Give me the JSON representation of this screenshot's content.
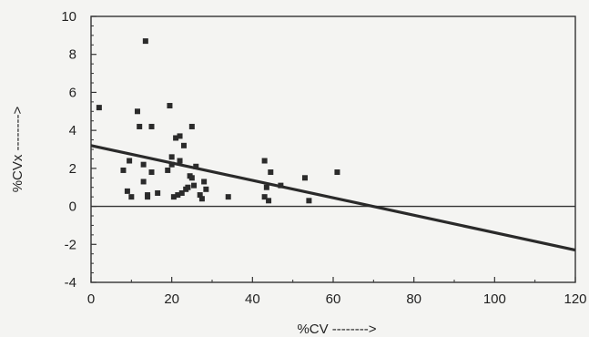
{
  "chart_data": {
    "type": "scatter",
    "xlabel": "%CV -------->",
    "ylabel": "%CVx -------->",
    "xlim": [
      0,
      120
    ],
    "ylim": [
      -4,
      10
    ],
    "x_ticks": [
      "0",
      "20",
      "40",
      "60",
      "80",
      "100",
      "120"
    ],
    "y_ticks": [
      "-4",
      "-2",
      "0",
      "2",
      "4",
      "6",
      "8",
      "10"
    ],
    "grid": false,
    "zero_line": true,
    "series": [
      {
        "points": [
          [
            2,
            5.2
          ],
          [
            8,
            1.9
          ],
          [
            9,
            0.8
          ],
          [
            9.5,
            2.4
          ],
          [
            10,
            0.5
          ],
          [
            11.5,
            5.0
          ],
          [
            12,
            4.2
          ],
          [
            13,
            1.3
          ],
          [
            13,
            2.2
          ],
          [
            13.5,
            8.7
          ],
          [
            14,
            0.6
          ],
          [
            14,
            0.5
          ],
          [
            15,
            4.2
          ],
          [
            15,
            1.8
          ],
          [
            16.5,
            0.7
          ],
          [
            19,
            1.9
          ],
          [
            19.5,
            5.3
          ],
          [
            20,
            2.2
          ],
          [
            20,
            2.6
          ],
          [
            20.5,
            0.5
          ],
          [
            21,
            3.6
          ],
          [
            21.5,
            0.6
          ],
          [
            22,
            3.7
          ],
          [
            22,
            2.4
          ],
          [
            22.5,
            0.7
          ],
          [
            23,
            3.2
          ],
          [
            23.5,
            0.9
          ],
          [
            24,
            1.0
          ],
          [
            24.5,
            1.6
          ],
          [
            25,
            1.5
          ],
          [
            25,
            4.2
          ],
          [
            25.5,
            1.1
          ],
          [
            26,
            2.1
          ],
          [
            27,
            0.6
          ],
          [
            27.5,
            0.4
          ],
          [
            28,
            1.3
          ],
          [
            28.5,
            0.9
          ],
          [
            34,
            0.5
          ],
          [
            43,
            2.4
          ],
          [
            43,
            0.5
          ],
          [
            43.5,
            1.0
          ],
          [
            44,
            0.3
          ],
          [
            44.5,
            1.8
          ],
          [
            47,
            1.1
          ],
          [
            53,
            1.5
          ],
          [
            54,
            0.3
          ],
          [
            61,
            1.8
          ]
        ]
      }
    ],
    "trend_line": {
      "x": [
        0,
        120
      ],
      "y": [
        3.2,
        -2.3
      ]
    }
  }
}
